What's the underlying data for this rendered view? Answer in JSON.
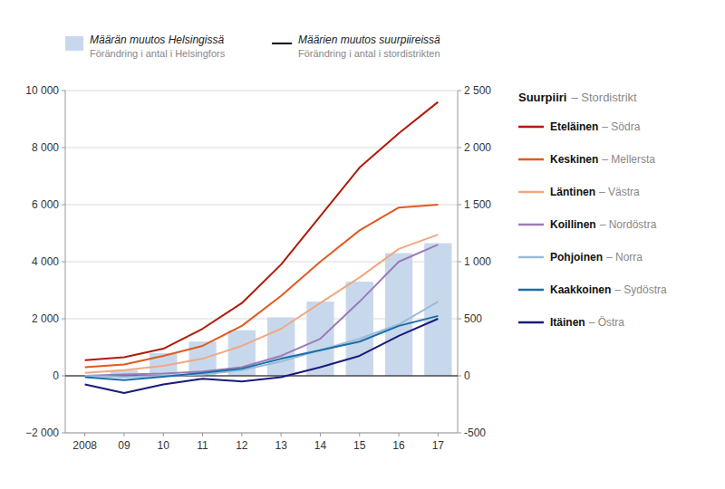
{
  "chart_data": {
    "type": "bar",
    "categories": [
      "2008",
      "09",
      "10",
      "11",
      "12",
      "13",
      "14",
      "15",
      "16",
      "17"
    ],
    "series": [
      {
        "name": "Määrän muutos Helsingissä",
        "subname": "Förändring i antal i Helsingfors",
        "type": "bar",
        "color": "#c8d8ec",
        "values": [
          0,
          200,
          800,
          1200,
          1600,
          2050,
          2600,
          3300,
          4300,
          4650
        ]
      },
      {
        "name": "Eteläinen",
        "subname": "– Södra",
        "type": "line",
        "color": "#b01a0a",
        "values": [
          550,
          650,
          950,
          1650,
          2550,
          3900,
          5600,
          7300,
          8500,
          9600
        ]
      },
      {
        "name": "Keskinen",
        "subname": "– Mellersta",
        "type": "line",
        "color": "#e05a20",
        "values": [
          300,
          400,
          700,
          1050,
          1750,
          2800,
          4000,
          5100,
          5900,
          6000
        ]
      },
      {
        "name": "Läntinen",
        "subname": "– Västra",
        "type": "line",
        "color": "#f0a882",
        "values": [
          100,
          200,
          350,
          600,
          1050,
          1650,
          2550,
          3450,
          4450,
          4950
        ]
      },
      {
        "name": "Koillinen",
        "subname": "– Nordöstra",
        "type": "line",
        "color": "#9b7bb8",
        "values": [
          0,
          50,
          80,
          150,
          300,
          700,
          1300,
          2600,
          4000,
          4600
        ]
      },
      {
        "name": "Pohjoinen",
        "subname": "– Norra",
        "type": "line",
        "color": "#9abcd8",
        "values": [
          0,
          -50,
          0,
          50,
          200,
          500,
          900,
          1300,
          1800,
          2600
        ]
      },
      {
        "name": "Kaakkoinen",
        "subname": "– Sydöstra",
        "type": "line",
        "color": "#1a6ea8",
        "values": [
          -50,
          -150,
          -30,
          100,
          250,
          600,
          900,
          1200,
          1750,
          2100
        ]
      },
      {
        "name": "Itäinen",
        "subname": "– Östra",
        "type": "line",
        "color": "#1a1a7a",
        "values": [
          -300,
          -600,
          -300,
          -100,
          -200,
          -50,
          300,
          700,
          1400,
          2000
        ]
      }
    ],
    "line_legend_title": "Määrien muutos suurpiireissä",
    "line_legend_subtitle": "Förändring i antal i stordistrikten",
    "legend_title": "Suurpiiri",
    "legend_subtitle": "– Stordistrikt",
    "legend": "right",
    "ylim": [
      -2000,
      10000
    ],
    "yticks": [
      {
        "value": -2000,
        "label": "−2 000"
      },
      0,
      {
        "value": 2000,
        "label": "2 000"
      },
      {
        "value": 4000,
        "label": "4 000"
      },
      {
        "value": 6000,
        "label": "6 000"
      },
      {
        "value": 8000,
        "label": "8 000"
      },
      {
        "value": 10000,
        "label": "10 000"
      }
    ],
    "y2lim": [
      -500,
      2500
    ],
    "y2ticks": [
      -500,
      0,
      500,
      {
        "value": 1000,
        "label": "1 000"
      },
      {
        "value": 1500,
        "label": "1 500"
      },
      {
        "value": 2000,
        "label": "2 000"
      },
      {
        "value": 2500,
        "label": "2 500"
      }
    ],
    "grid": true
  }
}
